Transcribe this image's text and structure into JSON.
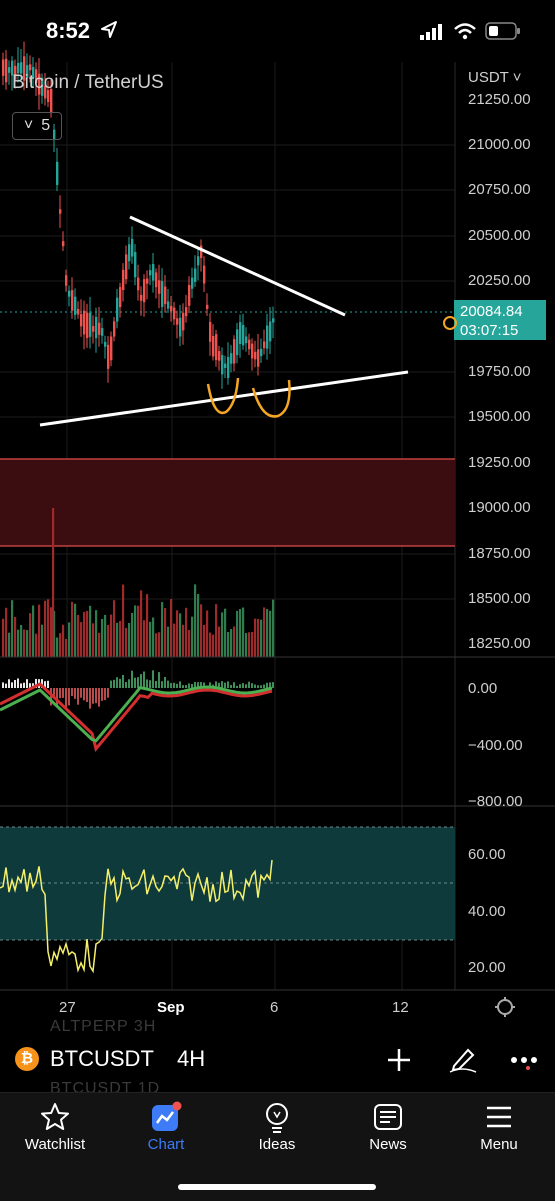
{
  "status": {
    "time": "8:52"
  },
  "chart": {
    "title": "Bitcoin / TetherUS",
    "unit": "USDT",
    "interval_collapsed": "5",
    "last_price": "20084.84",
    "countdown": "03:07:15",
    "price_ticks": [
      "21250.00",
      "21000.00",
      "20750.00",
      "20500.00",
      "20250.00",
      "19750.00",
      "19500.00",
      "19250.00",
      "19000.00",
      "18750.00",
      "18500.00",
      "18250.00"
    ],
    "macd_ticks": [
      "0.00",
      "−400.00",
      "−800.00"
    ],
    "rsi_ticks": [
      "60.00",
      "40.00",
      "20.00"
    ],
    "date_ticks": [
      "27",
      "Sep",
      "6",
      "12"
    ],
    "colors": {
      "up": "#26a69a",
      "down": "#ef5350",
      "zone": "#3b0d10",
      "rsi_band": "#0f3a3b",
      "accent": "#3d7bf7"
    }
  },
  "symbol": {
    "name": "BTCUSDT",
    "timeframe": "4H",
    "ghost_above": "ALTPERP 3H",
    "ghost_below": "BTCUSDT 1D",
    "coin_glyph": "₿"
  },
  "nav": {
    "items": [
      {
        "label": "Watchlist",
        "icon": "star-icon"
      },
      {
        "label": "Chart",
        "icon": "chart-icon"
      },
      {
        "label": "Ideas",
        "icon": "lightbulb-icon"
      },
      {
        "label": "News",
        "icon": "newspaper-icon"
      },
      {
        "label": "Menu",
        "icon": "menu-icon"
      }
    ],
    "active": "Chart"
  }
}
